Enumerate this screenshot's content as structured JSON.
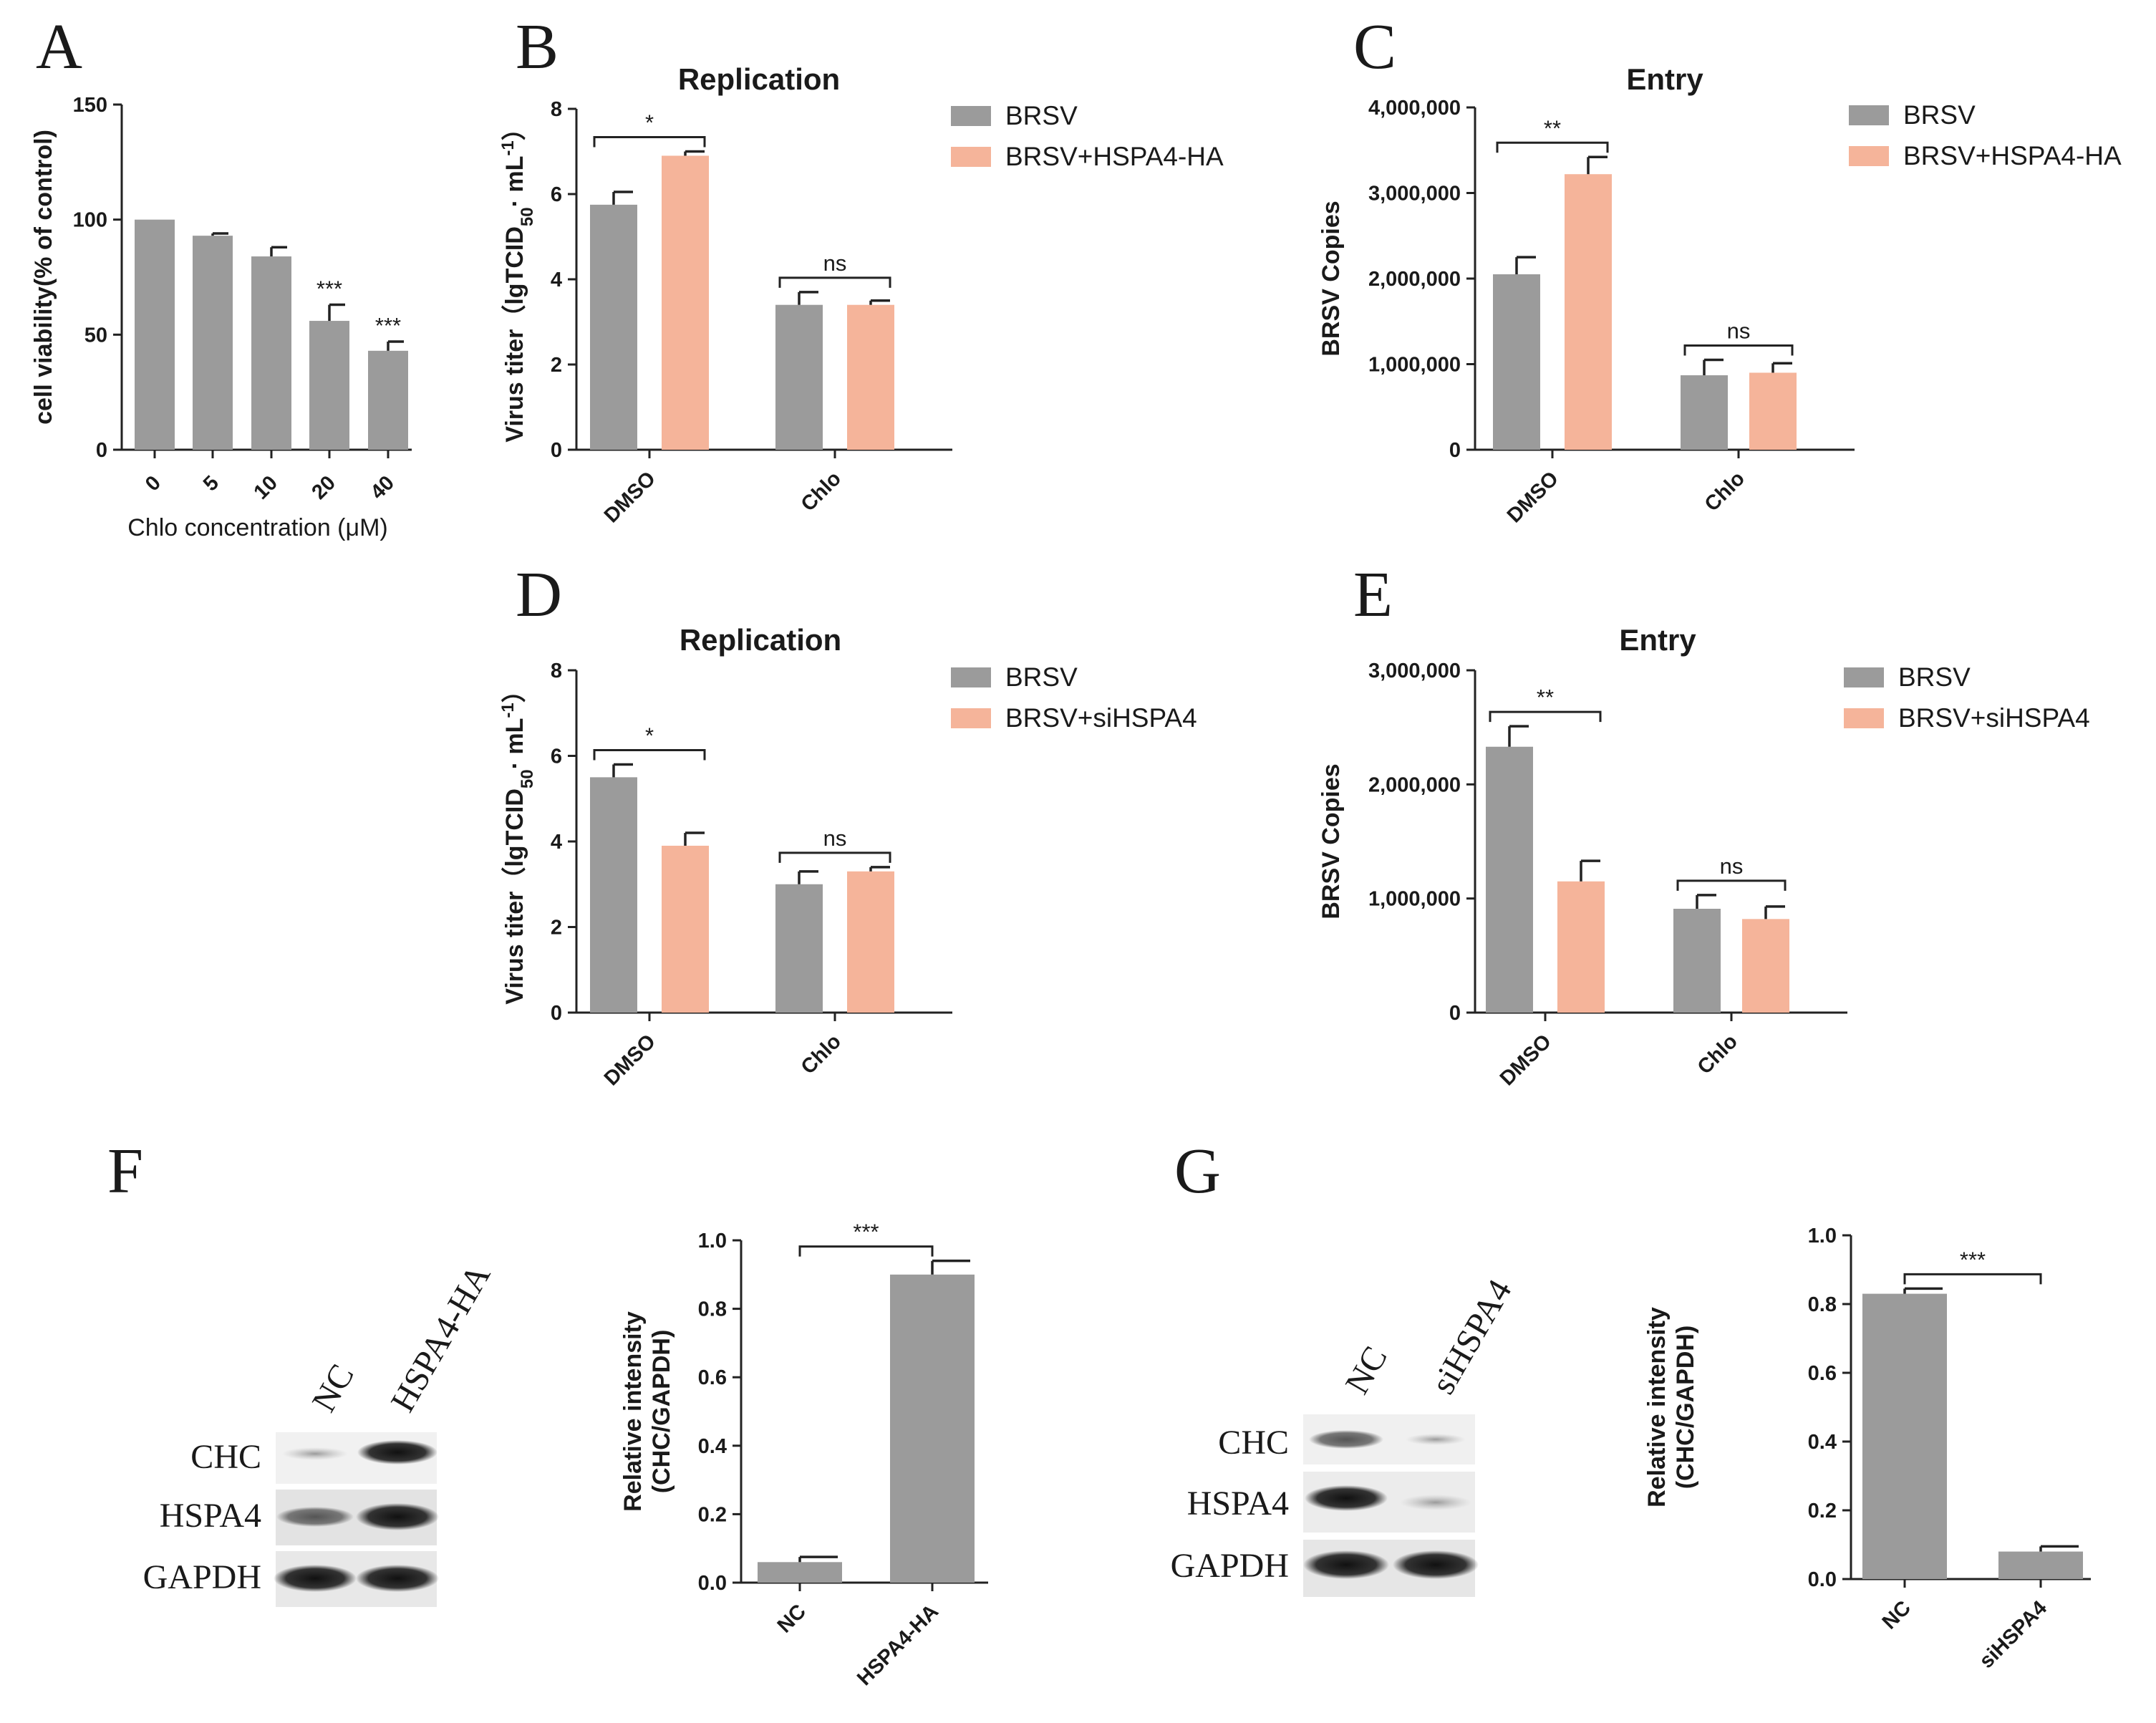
{
  "colors": {
    "gray": "#9b9b9b",
    "salmon": "#f5b49a",
    "axis": "#222222"
  },
  "panel_labels": {
    "A": "A",
    "B": "B",
    "C": "C",
    "D": "D",
    "E": "E",
    "F": "F",
    "G": "G"
  },
  "chart_data": [
    {
      "id": "A",
      "type": "bar",
      "title": "",
      "ylabel": "cell viability(% of control)",
      "xlabel": "Chlo concentration (μM)",
      "ylim": [
        0,
        150
      ],
      "yticks": [
        0,
        50,
        100,
        150
      ],
      "ytick_labels": [
        "0",
        "50",
        "100",
        "150"
      ],
      "categories": [
        "0",
        "5",
        "10",
        "20",
        "40"
      ],
      "series": [
        {
          "name": "",
          "color": "gray",
          "values": [
            100,
            93,
            84,
            56,
            43
          ],
          "errors": [
            0,
            1,
            4,
            7,
            4
          ]
        }
      ],
      "annotations": [
        {
          "category": 3,
          "text": "***"
        },
        {
          "category": 4,
          "text": "***"
        }
      ]
    },
    {
      "id": "B",
      "type": "bar",
      "title": "Replication",
      "ylabel_parts": [
        "Virus titer（lgTCID",
        "50",
        "· mL",
        "-1",
        "）"
      ],
      "ylim": [
        0,
        8
      ],
      "yticks": [
        0,
        2,
        4,
        6,
        8
      ],
      "ytick_labels": [
        "0",
        "2",
        "4",
        "6",
        "8"
      ],
      "categories": [
        "DMSO",
        "Chlo"
      ],
      "series": [
        {
          "name": "BRSV",
          "color": "gray",
          "values": [
            5.75,
            3.4
          ],
          "errors": [
            0.3,
            0.3
          ]
        },
        {
          "name": "BRSV+HSPA4-HA",
          "color": "salmon",
          "values": [
            6.9,
            3.4
          ],
          "errors": [
            0.1,
            0.1
          ]
        }
      ],
      "significance": [
        "*",
        "ns"
      ]
    },
    {
      "id": "C",
      "type": "bar",
      "title": "Entry",
      "ylabel": "BRSV Copies",
      "ylim": [
        0,
        4000000
      ],
      "yticks": [
        0,
        1000000,
        2000000,
        3000000,
        4000000
      ],
      "ytick_labels": [
        "0",
        "1,000,000",
        "2,000,000",
        "3,000,000",
        "4,000,000"
      ],
      "categories": [
        "DMSO",
        "Chlo"
      ],
      "series": [
        {
          "name": "BRSV",
          "color": "gray",
          "values": [
            2050000,
            870000
          ],
          "errors": [
            200000,
            180000
          ]
        },
        {
          "name": "BRSV+HSPA4-HA",
          "color": "salmon",
          "values": [
            3220000,
            900000
          ],
          "errors": [
            200000,
            110000
          ]
        }
      ],
      "significance": [
        "**",
        "ns"
      ]
    },
    {
      "id": "D",
      "type": "bar",
      "title": "Replication",
      "ylabel_parts": [
        "Virus titer（lgTCID",
        "50",
        "· mL",
        "-1",
        "）"
      ],
      "ylim": [
        0,
        8
      ],
      "yticks": [
        0,
        2,
        4,
        6,
        8
      ],
      "ytick_labels": [
        "0",
        "2",
        "4",
        "6",
        "8"
      ],
      "categories": [
        "DMSO",
        "Chlo"
      ],
      "series": [
        {
          "name": "BRSV",
          "color": "gray",
          "values": [
            5.5,
            3.0
          ],
          "errors": [
            0.3,
            0.3
          ]
        },
        {
          "name": "BRSV+siHSPA4",
          "color": "salmon",
          "values": [
            3.9,
            3.3
          ],
          "errors": [
            0.3,
            0.1
          ]
        }
      ],
      "significance": [
        "*",
        "ns"
      ]
    },
    {
      "id": "E",
      "type": "bar",
      "title": "Entry",
      "ylabel": "BRSV Copies",
      "ylim": [
        0,
        3000000
      ],
      "yticks": [
        0,
        1000000,
        2000000,
        3000000
      ],
      "ytick_labels": [
        "0",
        "1,000,000",
        "2,000,000",
        "3,000,000"
      ],
      "categories": [
        "DMSO",
        "Chlo"
      ],
      "series": [
        {
          "name": "BRSV",
          "color": "gray",
          "values": [
            2330000,
            910000
          ],
          "errors": [
            180000,
            120000
          ]
        },
        {
          "name": "BRSV+siHSPA4",
          "color": "salmon",
          "values": [
            1150000,
            820000
          ],
          "errors": [
            180000,
            110000
          ]
        }
      ],
      "significance": [
        "**",
        "ns"
      ]
    },
    {
      "id": "F",
      "type": "bar",
      "title": "",
      "ylabel_lines": [
        "Relative intensity",
        "(CHC/GAPDH)"
      ],
      "ylim": [
        0,
        1
      ],
      "yticks": [
        0,
        0.2,
        0.4,
        0.6,
        0.8,
        1.0
      ],
      "ytick_labels": [
        "0.0",
        "0.2",
        "0.4",
        "0.6",
        "0.8",
        "1.0"
      ],
      "categories": [
        "NC",
        "HSPA4-HA"
      ],
      "series": [
        {
          "name": "",
          "color": "gray",
          "values": [
            0.06,
            0.9
          ],
          "errors": [
            0.015,
            0.04
          ]
        }
      ],
      "significance_pair": "***"
    },
    {
      "id": "G",
      "type": "bar",
      "title": "",
      "ylabel_lines": [
        "Relative intensity",
        "(CHC/GAPDH)"
      ],
      "ylim": [
        0,
        1
      ],
      "yticks": [
        0,
        0.2,
        0.4,
        0.6,
        0.8,
        1.0
      ],
      "ytick_labels": [
        "0.0",
        "0.2",
        "0.4",
        "0.6",
        "0.8",
        "1.0"
      ],
      "categories": [
        "NC",
        "siHSPA4"
      ],
      "series": [
        {
          "name": "",
          "color": "gray",
          "values": [
            0.83,
            0.08
          ],
          "errors": [
            0.015,
            0.015
          ]
        }
      ],
      "significance_pair": "***"
    }
  ],
  "blots": {
    "F": {
      "lanes": [
        "NC",
        "HSPA4-HA"
      ],
      "rows": [
        "CHC",
        "HSPA4",
        "GAPDH"
      ]
    },
    "G": {
      "lanes": [
        "NC",
        "siHSPA4"
      ],
      "rows": [
        "CHC",
        "HSPA4",
        "GAPDH"
      ]
    }
  }
}
